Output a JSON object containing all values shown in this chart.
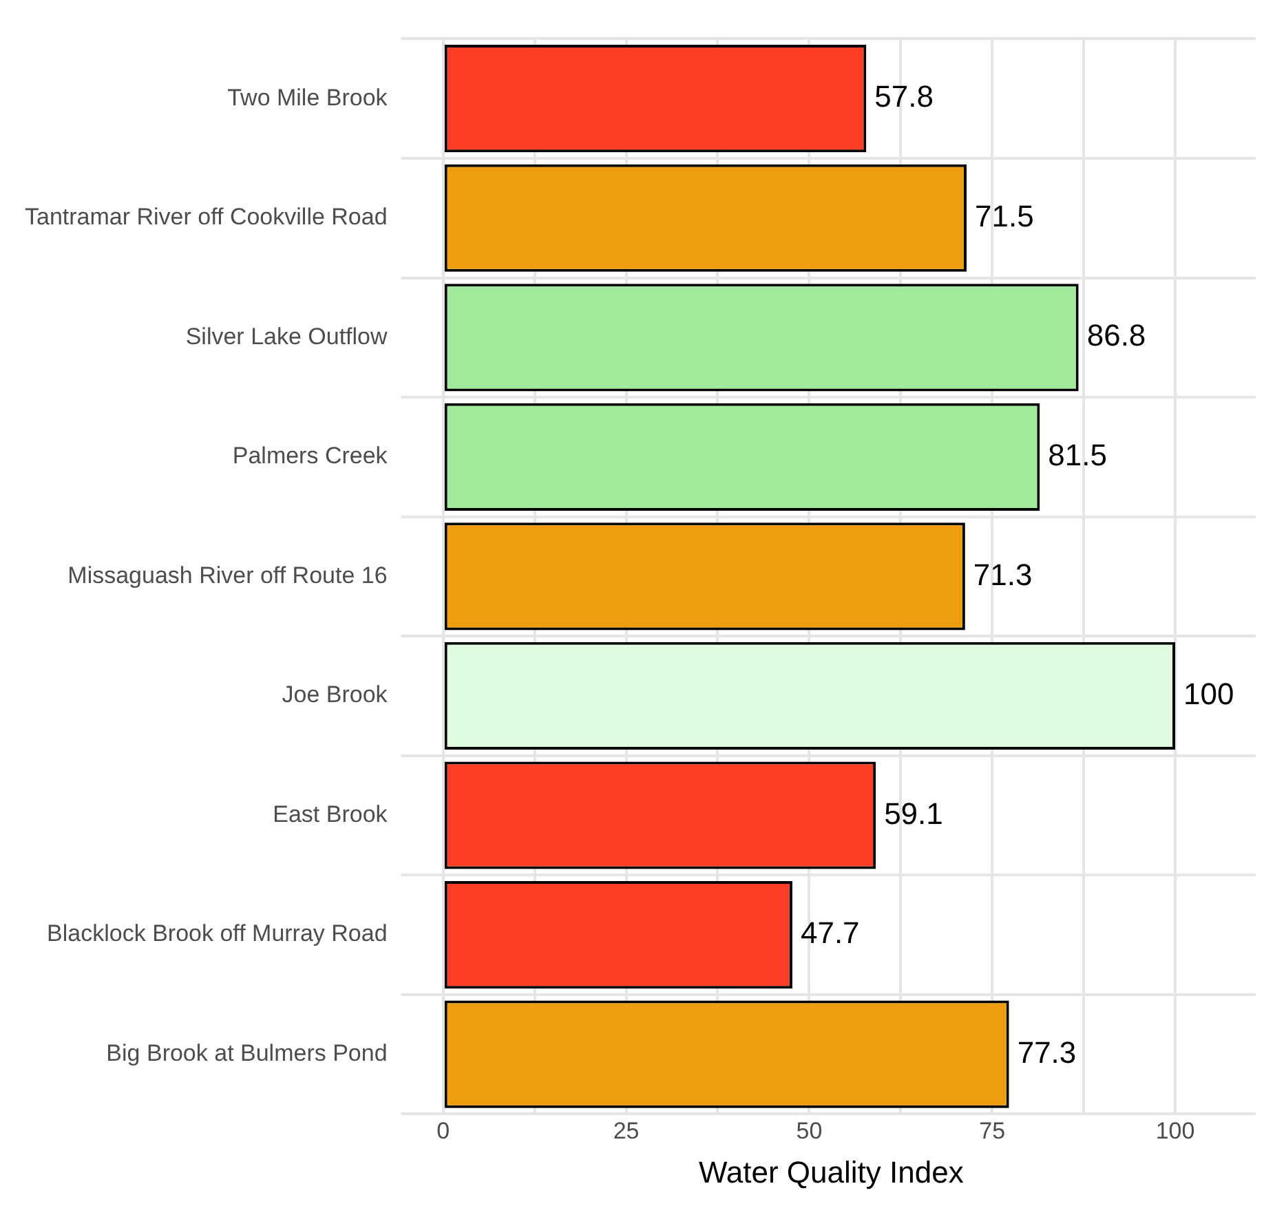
{
  "chart_data": {
    "type": "bar",
    "orientation": "horizontal",
    "xlabel": "Water Quality Index",
    "categories": [
      "Two Mile Brook",
      "Tantramar River off Cookville Road",
      "Silver Lake Outflow",
      "Palmers Creek",
      "Missaguash River off Route 16",
      "Joe Brook",
      "East Brook",
      "Blacklock Brook off Murray Road",
      "Big Brook at Bulmers Pond"
    ],
    "values": [
      57.8,
      71.5,
      86.8,
      81.5,
      71.3,
      100,
      59.1,
      47.7,
      77.3
    ],
    "colors": [
      "#fc3f24",
      "#ee9e0c",
      "#a1e99b",
      "#a1e99b",
      "#ee9e0c",
      "#e0fce0",
      "#fc3f24",
      "#fc3f24",
      "#ee9e0c"
    ],
    "xlim": [
      -5,
      111
    ],
    "xticks": [
      0,
      {
        "value": 12.5,
        "label": null
      },
      25,
      {
        "value": 37.5,
        "label": null
      },
      50,
      {
        "value": 62.5,
        "label": null
      },
      75,
      {
        "value": 87.5,
        "label": null
      },
      100
    ],
    "grid": true,
    "data_labels": true,
    "legend": false
  }
}
